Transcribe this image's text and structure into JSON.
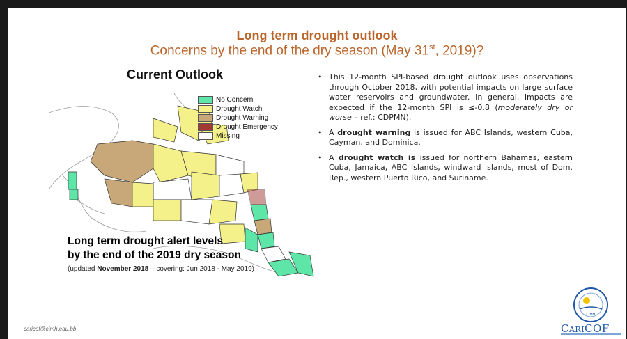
{
  "slide": {
    "title": "Long term drought outlook",
    "subtitle_main": "Concerns by the end of the dry season (May 31",
    "subtitle_sup": "st",
    "subtitle_end": ", 2019)?",
    "outlook_heading": "Current Outlook",
    "legend": [
      {
        "label": "No Concern",
        "color": "#5ee6a8"
      },
      {
        "label": "Drought Watch",
        "color": "#f5f18a"
      },
      {
        "label": "Drought Warning",
        "color": "#c8a879"
      },
      {
        "label": "Drought Emergency",
        "color": "#a13a35"
      },
      {
        "label": "Missing",
        "color": "#ffffff"
      }
    ],
    "map_caption_line1": "Long term drought alert levels",
    "map_caption_line2": "by the end of the 2019 dry season",
    "map_note_pre": "(updated ",
    "map_note_bold": "November 2018",
    "map_note_post": " – covering: Jun 2018 - May 2019)",
    "bullet1_pre": "This 12-month SPI-based drought outlook uses observations through October 2018, with potential impacts on large surface water reservoirs and groundwater. In general, impacts are expected if the 12-month SPI is ≤-0.8 (",
    "bullet1_italic": "moderately dry or worse",
    "bullet1_post": " – ref.: CDPMN).",
    "bullet2_pre": "A ",
    "bullet2_bold": "drought warning",
    "bullet2_post": " is issued for ABC Islands, western Cuba, Cayman, and Dominica.",
    "bullet3_pre": "A ",
    "bullet3_bold": "drought watch is",
    "bullet3_post": " issued for northern Bahamas, eastern Cuba, Jamaica, ABC Islands, windward islands, most of Dom. Rep., western Puerto Rico, and Suriname.",
    "email": "caricof@cimh.edu.bb",
    "logo_text": "CariCOF",
    "logo_seal_text": "CIMH"
  }
}
